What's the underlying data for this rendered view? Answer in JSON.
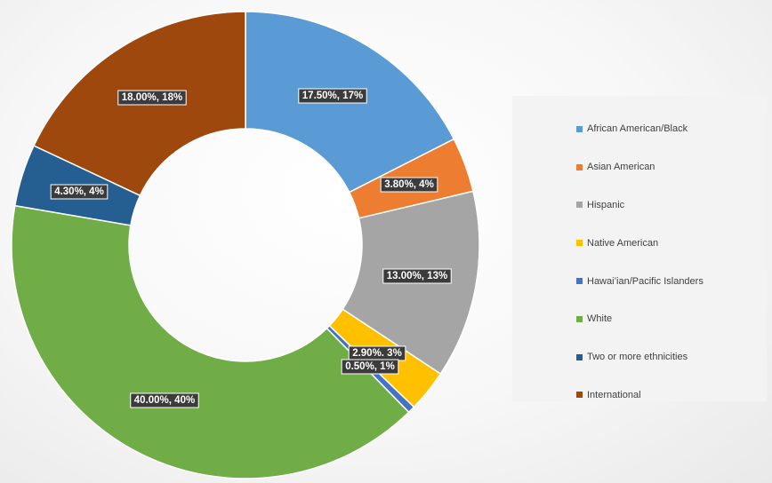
{
  "chart_data": {
    "type": "pie",
    "variant": "doughnut",
    "categories": [
      "African American/Black",
      "Asian American",
      "Hispanic",
      "Native American",
      "Hawai’ian/Pacific Islanders",
      "White",
      "Two or more ethnicities",
      "International"
    ],
    "values": [
      17.5,
      3.8,
      13.0,
      2.9,
      0.5,
      40.0,
      4.3,
      18.0
    ],
    "data_labels": [
      "17.50%, 17%",
      "3.80%, 4%",
      "13.00%, 13%",
      "2.90%. 3%",
      "0.50%, 1%",
      "40.00%, 40%",
      "4.30%, 4%",
      "18.00%, 18%"
    ],
    "colors": [
      "#5b9bd5",
      "#ed7d31",
      "#a5a5a5",
      "#ffc000",
      "#4472c4",
      "#70ad47",
      "#255e91",
      "#9e480e"
    ],
    "title": "",
    "legend_position": "right"
  }
}
